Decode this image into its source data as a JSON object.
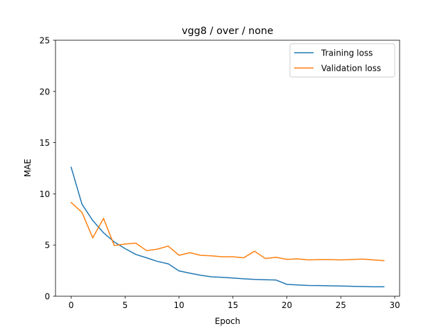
{
  "chart_data": {
    "type": "line",
    "title": "vgg8 / over / none",
    "xlabel": "Epoch",
    "ylabel": "MAE",
    "xlim": [
      -1.45,
      30.45
    ],
    "ylim": [
      0,
      25
    ],
    "xticks": [
      0,
      5,
      10,
      15,
      20,
      25,
      30
    ],
    "yticks": [
      0,
      5,
      10,
      15,
      20,
      25
    ],
    "x": [
      0,
      1,
      2,
      3,
      4,
      5,
      6,
      7,
      8,
      9,
      10,
      11,
      12,
      13,
      14,
      15,
      16,
      17,
      18,
      19,
      20,
      21,
      22,
      23,
      24,
      25,
      26,
      27,
      28,
      29
    ],
    "grid": false,
    "legend_position": "top-right",
    "series": [
      {
        "name": "Training loss",
        "color": "#1f77b4",
        "values": [
          12.6,
          9.0,
          7.4,
          6.2,
          5.3,
          4.65,
          4.08,
          3.75,
          3.4,
          3.17,
          2.47,
          2.25,
          2.05,
          1.9,
          1.85,
          1.78,
          1.7,
          1.64,
          1.61,
          1.58,
          1.16,
          1.1,
          1.05,
          1.04,
          1.02,
          1.0,
          0.97,
          0.95,
          0.92,
          0.92
        ]
      },
      {
        "name": "Validation loss",
        "color": "#ff7f0e",
        "values": [
          9.15,
          8.2,
          5.7,
          7.6,
          4.95,
          5.1,
          5.18,
          4.45,
          4.6,
          4.9,
          4.0,
          4.25,
          4.0,
          3.95,
          3.85,
          3.85,
          3.75,
          4.4,
          3.68,
          3.8,
          3.6,
          3.65,
          3.55,
          3.57,
          3.57,
          3.55,
          3.58,
          3.63,
          3.55,
          3.48
        ]
      }
    ]
  }
}
